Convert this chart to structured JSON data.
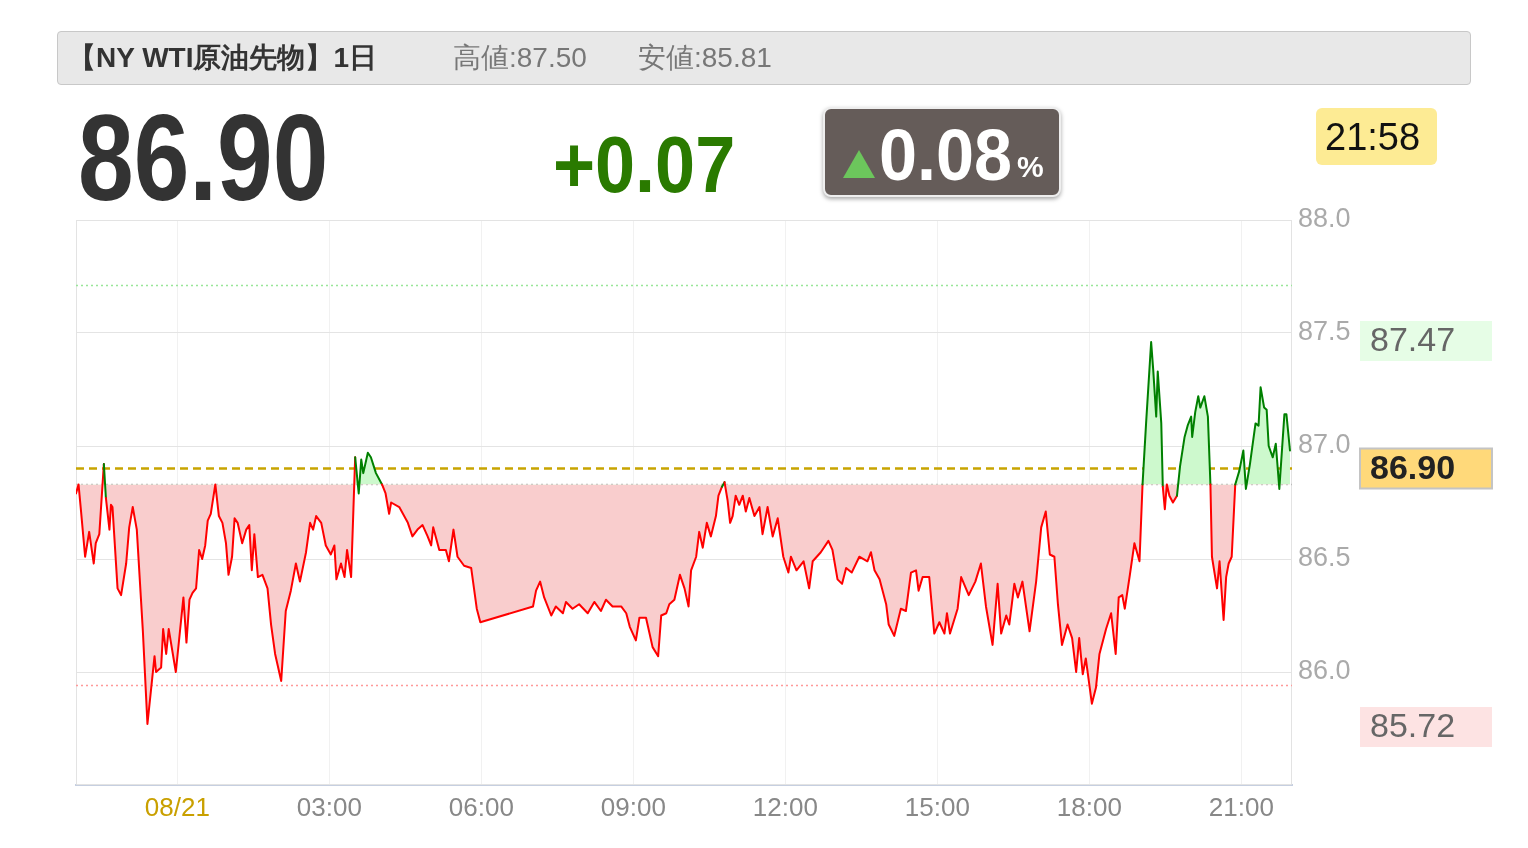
{
  "chart_data": {
    "type": "area",
    "title": "【NY WTI原油先物】1日",
    "annotations": [
      "高値:87.50",
      "安値:85.81",
      "86.90",
      "+0.07",
      "0.08%",
      "21:58",
      "87.47",
      "85.72"
    ],
    "x": [
      -2.0,
      -1.95,
      -1.9,
      -1.82,
      -1.74,
      -1.65,
      -1.61,
      -1.54,
      -1.45,
      -1.41,
      -1.34,
      -1.31,
      -1.28,
      -1.18,
      -1.11,
      -1.01,
      -0.95,
      -0.88,
      -0.8,
      -0.68,
      -0.59,
      -0.45,
      -0.42,
      -0.32,
      -0.28,
      -0.22,
      -0.17,
      -0.03,
      0.12,
      0.18,
      0.24,
      0.3,
      0.37,
      0.43,
      0.49,
      0.55,
      0.6,
      0.66,
      0.75,
      0.82,
      0.89,
      0.96,
      1.01,
      1.08,
      1.13,
      1.19,
      1.28,
      1.36,
      1.42,
      1.47,
      1.52,
      1.59,
      1.68,
      1.78,
      1.85,
      1.93,
      2.05,
      2.14,
      2.24,
      2.34,
      2.42,
      2.54,
      2.62,
      2.68,
      2.74,
      2.84,
      2.93,
      3.03,
      3.1,
      3.14,
      3.23,
      3.3,
      3.35,
      3.43,
      3.51,
      3.58,
      3.63,
      3.67,
      3.76,
      3.82,
      3.92,
      4.04,
      4.11,
      4.18,
      4.22,
      4.38,
      4.55,
      4.64,
      4.74,
      4.84,
      4.94,
      5.01,
      5.05,
      5.17,
      5.3,
      5.36,
      5.45,
      5.53,
      5.66,
      5.8,
      5.91,
      5.98,
      7.02,
      7.08,
      7.16,
      7.24,
      7.38,
      7.47,
      7.61,
      7.67,
      7.8,
      7.93,
      8.1,
      8.23,
      8.36,
      8.46,
      8.59,
      8.76,
      8.86,
      8.93,
      9.05,
      9.12,
      9.25,
      9.32,
      9.38,
      9.49,
      9.55,
      9.65,
      9.71,
      9.81,
      9.92,
      10.01,
      10.09,
      10.14,
      10.24,
      10.3,
      10.37,
      10.45,
      10.53,
      10.63,
      10.68,
      10.75,
      10.8,
      10.86,
      10.91,
      10.96,
      11.02,
      11.09,
      11.16,
      11.22,
      11.29,
      11.39,
      11.49,
      11.55,
      11.65,
      11.75,
      11.85,
      11.96,
      12.06,
      12.11,
      12.22,
      12.36,
      12.47,
      12.54,
      12.7,
      12.85,
      12.93,
      13.03,
      13.12,
      13.2,
      13.31,
      13.46,
      13.62,
      13.69,
      13.76,
      13.86,
      13.99,
      14.04,
      14.15,
      14.28,
      14.38,
      14.48,
      14.58,
      14.63,
      14.71,
      14.84,
      14.94,
      15.04,
      15.14,
      15.19,
      15.25,
      15.4,
      15.47,
      15.62,
      15.75,
      15.86,
      15.96,
      16.09,
      16.19,
      16.26,
      16.36,
      16.42,
      16.52,
      16.59,
      16.68,
      16.82,
      16.95,
      17.05,
      17.14,
      17.22,
      17.31,
      17.38,
      17.46,
      17.57,
      17.66,
      17.74,
      17.8,
      17.87,
      17.93,
      18.05,
      18.13,
      18.2,
      18.33,
      18.43,
      18.52,
      18.58,
      18.65,
      18.7,
      18.8,
      18.89,
      18.99,
      19.05,
      19.12,
      19.22,
      19.26,
      19.32,
      19.35,
      19.42,
      19.45,
      19.49,
      19.53,
      19.58,
      19.65,
      19.73,
      19.79,
      19.88,
      19.94,
      20.01,
      20.03,
      20.09,
      20.15,
      20.19,
      20.27,
      20.34,
      20.39,
      20.42,
      20.52,
      20.57,
      20.65,
      20.7,
      20.75,
      20.81,
      20.88,
      20.96,
      21.04,
      21.09,
      21.17,
      21.28,
      21.34,
      21.38,
      21.45,
      21.5,
      21.54,
      21.62,
      21.68,
      21.75,
      21.85,
      21.89,
      21.96
    ],
    "values": [
      86.79,
      86.83,
      86.71,
      86.51,
      86.62,
      86.48,
      86.57,
      86.61,
      86.92,
      86.77,
      86.63,
      86.74,
      86.73,
      86.37,
      86.34,
      86.48,
      86.64,
      86.73,
      86.63,
      86.18,
      85.77,
      86.07,
      86.0,
      86.02,
      86.19,
      86.08,
      86.19,
      86.0,
      86.33,
      86.13,
      86.32,
      86.35,
      86.37,
      86.54,
      86.5,
      86.56,
      86.67,
      86.7,
      86.83,
      86.69,
      86.66,
      86.57,
      86.43,
      86.51,
      86.68,
      86.66,
      86.57,
      86.63,
      86.65,
      86.45,
      86.61,
      86.42,
      86.43,
      86.37,
      86.21,
      86.08,
      85.96,
      86.27,
      86.36,
      86.48,
      86.4,
      86.53,
      86.66,
      86.63,
      86.69,
      86.66,
      86.56,
      86.52,
      86.56,
      86.41,
      86.48,
      86.42,
      86.54,
      86.42,
      86.95,
      86.79,
      86.94,
      86.88,
      86.97,
      86.95,
      86.88,
      86.83,
      86.79,
      86.7,
      86.75,
      86.73,
      86.66,
      86.6,
      86.63,
      86.65,
      86.6,
      86.56,
      86.64,
      86.54,
      86.54,
      86.49,
      86.63,
      86.51,
      86.47,
      86.46,
      86.28,
      86.22,
      86.29,
      86.36,
      86.4,
      86.33,
      86.25,
      86.29,
      86.26,
      86.31,
      86.28,
      86.3,
      86.26,
      86.31,
      86.27,
      86.32,
      86.29,
      86.29,
      86.26,
      86.2,
      86.14,
      86.24,
      86.24,
      86.17,
      86.11,
      86.07,
      86.25,
      86.26,
      86.3,
      86.32,
      86.43,
      86.37,
      86.29,
      86.45,
      86.51,
      86.62,
      86.55,
      86.66,
      86.6,
      86.69,
      86.78,
      86.82,
      86.84,
      86.76,
      86.66,
      86.69,
      86.78,
      86.74,
      86.78,
      86.71,
      86.77,
      86.69,
      86.73,
      86.61,
      86.73,
      86.6,
      86.68,
      86.51,
      86.44,
      86.51,
      86.45,
      86.49,
      86.37,
      86.49,
      86.53,
      86.58,
      86.54,
      86.41,
      86.39,
      86.46,
      86.44,
      86.51,
      86.49,
      86.53,
      86.45,
      86.41,
      86.3,
      86.21,
      86.16,
      86.28,
      86.27,
      86.44,
      86.45,
      86.36,
      86.42,
      86.42,
      86.17,
      86.22,
      86.17,
      86.26,
      86.17,
      86.28,
      86.42,
      86.34,
      86.4,
      86.48,
      86.29,
      86.12,
      86.39,
      86.17,
      86.25,
      86.21,
      86.39,
      86.33,
      86.4,
      86.18,
      86.4,
      86.64,
      86.71,
      86.52,
      86.51,
      86.3,
      86.12,
      86.21,
      86.15,
      86.0,
      86.15,
      85.99,
      86.06,
      85.86,
      85.93,
      86.08,
      86.19,
      86.26,
      86.08,
      86.33,
      86.34,
      86.28,
      86.43,
      86.57,
      86.49,
      86.83,
      87.1,
      87.46,
      87.34,
      87.13,
      87.33,
      87.1,
      86.82,
      86.72,
      86.83,
      86.78,
      86.75,
      86.78,
      86.91,
      87.04,
      87.09,
      87.13,
      87.04,
      87.15,
      87.22,
      87.17,
      87.22,
      87.13,
      86.83,
      86.51,
      86.37,
      86.49,
      86.23,
      86.42,
      86.48,
      86.51,
      86.83,
      86.89,
      86.98,
      86.81,
      86.92,
      87.1,
      87.09,
      87.26,
      87.17,
      87.16,
      87.0,
      86.95,
      87.01,
      86.81,
      87.14,
      87.14,
      86.98
    ],
    "colors": [
      "#ff0000",
      "#ff0000",
      "#ff0000",
      "#ff0000",
      "#ff0000",
      "#ff0000",
      "#ff0000",
      "#ff0000",
      "#008000",
      "#ff0000",
      "#ff0000",
      "#ff0000",
      "#ff0000",
      "#ff0000",
      "#ff0000",
      "#ff0000",
      "#ff0000",
      "#ff0000",
      "#ff0000",
      "#ff0000",
      "#ff0000",
      "#ff0000",
      "#ff0000",
      "#ff0000",
      "#ff0000",
      "#ff0000",
      "#ff0000",
      "#ff0000",
      "#ff0000",
      "#ff0000",
      "#ff0000",
      "#ff0000",
      "#ff0000",
      "#ff0000",
      "#ff0000",
      "#ff0000",
      "#ff0000",
      "#ff0000",
      "#ff0000",
      "#ff0000",
      "#ff0000",
      "#ff0000",
      "#ff0000",
      "#ff0000",
      "#ff0000",
      "#ff0000",
      "#ff0000",
      "#ff0000",
      "#ff0000",
      "#ff0000",
      "#ff0000",
      "#ff0000",
      "#ff0000",
      "#ff0000",
      "#ff0000",
      "#ff0000",
      "#ff0000",
      "#ff0000",
      "#ff0000",
      "#ff0000",
      "#ff0000",
      "#ff0000",
      "#ff0000",
      "#ff0000",
      "#ff0000",
      "#ff0000",
      "#ff0000",
      "#ff0000",
      "#ff0000",
      "#ff0000",
      "#ff0000",
      "#ff0000",
      "#ff0000",
      "#ff0000",
      "#008000",
      "#ff0000",
      "#008000",
      "#008000",
      "#008000",
      "#008000",
      "#008000",
      "#ff0000",
      "#ff0000",
      "#ff0000",
      "#ff0000",
      "#ff0000",
      "#ff0000",
      "#ff0000",
      "#ff0000",
      "#ff0000",
      "#ff0000",
      "#ff0000",
      "#ff0000",
      "#ff0000",
      "#ff0000",
      "#ff0000",
      "#ff0000",
      "#ff0000",
      "#ff0000",
      "#ff0000",
      "#ff0000",
      "#ff0000",
      "#ff0000",
      "#ff0000",
      "#ff0000",
      "#ff0000",
      "#ff0000",
      "#ff0000",
      "#ff0000",
      "#ff0000",
      "#ff0000",
      "#ff0000",
      "#ff0000",
      "#ff0000",
      "#ff0000",
      "#ff0000",
      "#ff0000",
      "#ff0000",
      "#ff0000",
      "#ff0000",
      "#ff0000",
      "#ff0000",
      "#ff0000",
      "#ff0000",
      "#ff0000",
      "#ff0000",
      "#ff0000",
      "#ff0000",
      "#ff0000",
      "#ff0000",
      "#ff0000",
      "#ff0000",
      "#ff0000",
      "#ff0000",
      "#ff0000",
      "#ff0000",
      "#ff0000",
      "#ff0000",
      "#ff0000",
      "#ff0000",
      "#ff0000",
      "#ff0000",
      "#008000",
      "#ff0000",
      "#ff0000",
      "#ff0000",
      "#ff0000",
      "#ff0000",
      "#ff0000",
      "#ff0000",
      "#ff0000",
      "#ff0000",
      "#ff0000",
      "#ff0000",
      "#ff0000",
      "#ff0000",
      "#ff0000",
      "#ff0000",
      "#ff0000",
      "#ff0000",
      "#ff0000",
      "#ff0000",
      "#ff0000",
      "#ff0000",
      "#ff0000",
      "#ff0000",
      "#ff0000",
      "#ff0000",
      "#ff0000",
      "#ff0000",
      "#ff0000",
      "#ff0000",
      "#ff0000",
      "#ff0000",
      "#ff0000",
      "#ff0000",
      "#ff0000",
      "#ff0000",
      "#ff0000",
      "#ff0000",
      "#ff0000",
      "#ff0000",
      "#ff0000",
      "#ff0000",
      "#ff0000",
      "#ff0000",
      "#ff0000",
      "#ff0000",
      "#ff0000",
      "#ff0000",
      "#ff0000",
      "#ff0000",
      "#ff0000",
      "#ff0000",
      "#ff0000",
      "#ff0000",
      "#ff0000",
      "#ff0000",
      "#ff0000",
      "#ff0000",
      "#ff0000",
      "#ff0000",
      "#ff0000",
      "#ff0000",
      "#ff0000",
      "#ff0000",
      "#ff0000",
      "#ff0000",
      "#ff0000",
      "#ff0000",
      "#ff0000",
      "#ff0000",
      "#ff0000",
      "#ff0000",
      "#ff0000",
      "#ff0000",
      "#ff0000",
      "#ff0000",
      "#ff0000",
      "#ff0000",
      "#ff0000",
      "#ff0000",
      "#ff0000",
      "#ff0000",
      "#ff0000",
      "#ff0000",
      "#ff0000",
      "#ff0000",
      "#ff0000",
      "#ff0000",
      "#ff0000",
      "#ff0000",
      "#008000",
      "#008000",
      "#008000",
      "#008000",
      "#008000",
      "#008000",
      "#ff0000",
      "#ff0000",
      "#ff0000",
      "#ff0000",
      "#ff0000",
      "#ff0000",
      "#008000",
      "#008000",
      "#008000",
      "#008000",
      "#008000",
      "#008000",
      "#008000",
      "#008000",
      "#008000",
      "#008000",
      "#ff0000",
      "#ff0000",
      "#ff0000",
      "#ff0000",
      "#ff0000",
      "#ff0000",
      "#ff0000",
      "#ff0000",
      "#ff0000",
      "#008000",
      "#008000",
      "#ff0000",
      "#008000",
      "#008000",
      "#008000",
      "#008000",
      "#008000",
      "#008000",
      "#008000",
      "#008000",
      "#008000",
      "#ff0000",
      "#008000",
      "#008000",
      "#008000"
    ],
    "xlim": [
      -2,
      22
    ],
    "xticks": [
      {
        "value": 0,
        "label": "08/21"
      },
      {
        "value": 3,
        "label": "03:00"
      },
      {
        "value": 6,
        "label": "06:00"
      },
      {
        "value": 9,
        "label": "09:00"
      },
      {
        "value": 12,
        "label": "12:00"
      },
      {
        "value": 15,
        "label": "15:00"
      },
      {
        "value": 18,
        "label": "18:00"
      },
      {
        "value": 21,
        "label": "21:00"
      }
    ],
    "ylim": [
      85.5,
      88.0
    ],
    "yticks": [
      {
        "value": 86,
        "label": "86.0"
      },
      {
        "value": 86.5,
        "label": "86.5"
      },
      {
        "value": 87,
        "label": "87.0"
      },
      {
        "value": 87.5,
        "label": "87.5"
      },
      {
        "value": 88,
        "label": "88.0"
      }
    ],
    "grid": true,
    "ref_lines": [
      {
        "axis": "y",
        "value": 86.83,
        "color": "#bbbbbb",
        "line_style": "dotted"
      },
      {
        "axis": "y",
        "value": 86.9,
        "label": "86.90",
        "color": "#c8a400",
        "line_style": "dashed"
      },
      {
        "axis": "y",
        "value": 87.71,
        "color": "#99e699",
        "line_style": "dotted"
      },
      {
        "axis": "y",
        "value": 85.94,
        "color": "#ff9999",
        "line_style": "dotted"
      }
    ]
  }
}
